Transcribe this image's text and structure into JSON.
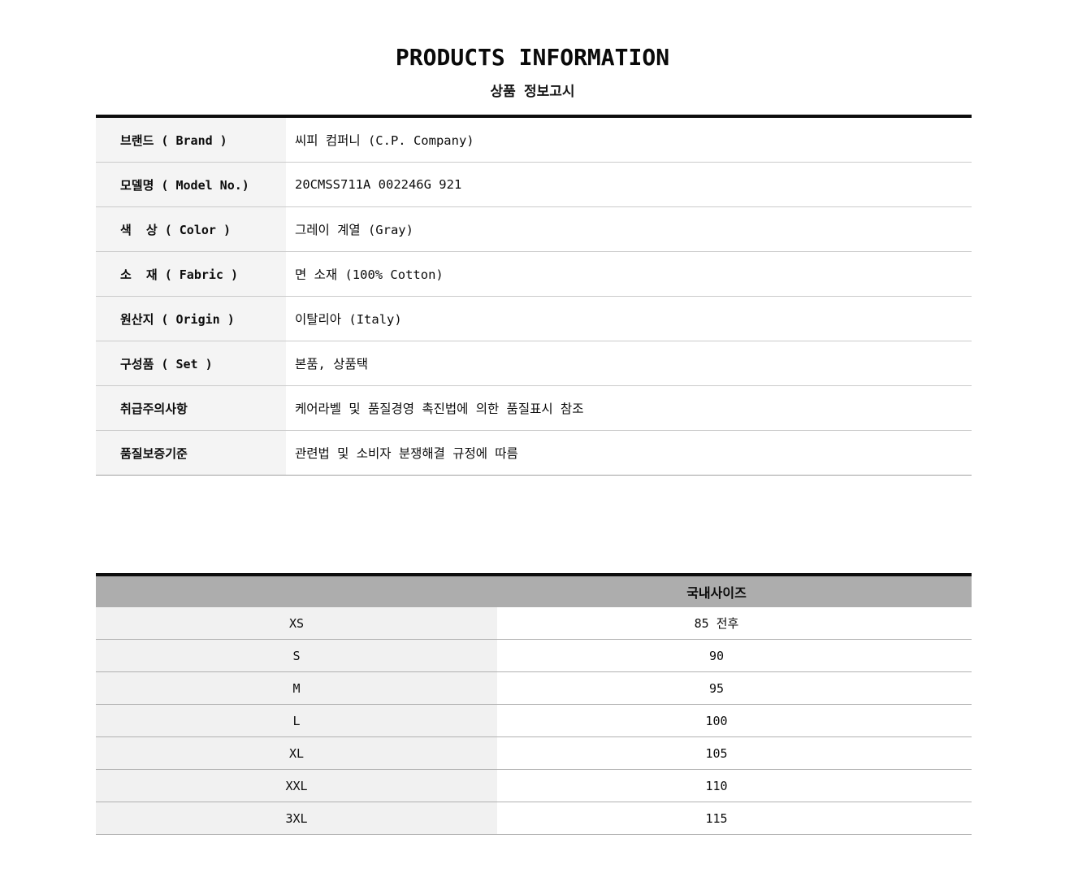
{
  "page": {
    "title": "PRODUCTS INFORMATION",
    "subtitle": "상품 정보고시"
  },
  "colors": {
    "info-label-bg": "#f4f4f4",
    "size-header-bg": "#adadad",
    "size-label-bg": "#f1f1f1"
  },
  "info_table": {
    "rows": [
      {
        "label": "브랜드 ( Brand )",
        "value": "씨피 컴퍼니 (C.P. Company)"
      },
      {
        "label": "모델명 ( Model No.)",
        "value": "20CMSS711A 002246G 921"
      },
      {
        "label": "색  상 ( Color )",
        "value": "그레이 계열 (Gray)"
      },
      {
        "label": "소  재 ( Fabric )",
        "value": "면 소재 (100% Cotton)"
      },
      {
        "label": "원산지 ( Origin )",
        "value": "이탈리아 (Italy)"
      },
      {
        "label": "구성품 ( Set )",
        "value": "본품, 상품택"
      },
      {
        "label": "취급주의사항",
        "value": "케어라벨 및 품질경영 촉진법에 의한 품질표시 참조"
      },
      {
        "label": "품질보증기준",
        "value": "관련법 및 소비자 분쟁해결 규정에 따름"
      }
    ]
  },
  "size_table": {
    "header": "국내사이즈",
    "rows": [
      {
        "size": "XS",
        "value": "85 전후"
      },
      {
        "size": "S",
        "value": "90"
      },
      {
        "size": "M",
        "value": "95"
      },
      {
        "size": "L",
        "value": "100"
      },
      {
        "size": "XL",
        "value": "105"
      },
      {
        "size": "XXL",
        "value": "110"
      },
      {
        "size": "3XL",
        "value": "115"
      }
    ]
  }
}
